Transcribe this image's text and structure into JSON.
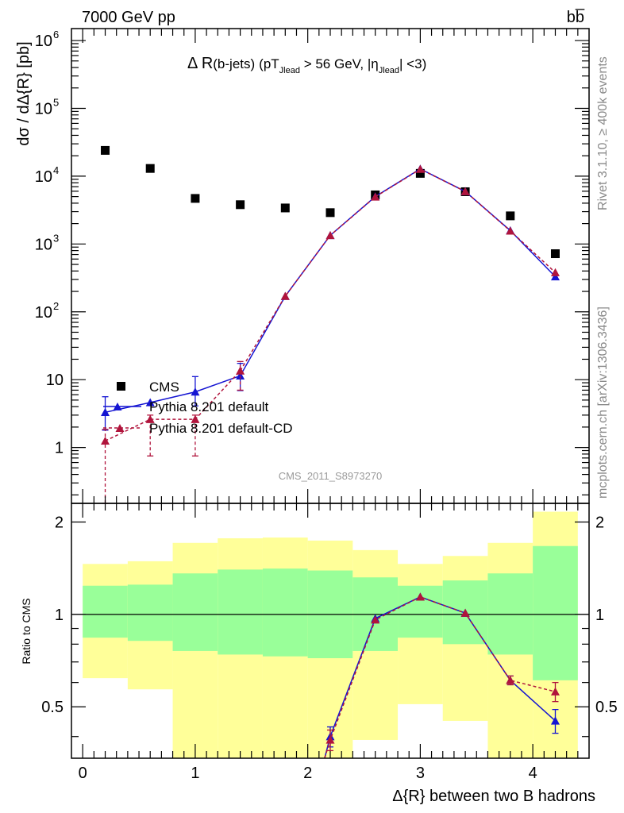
{
  "header": {
    "left": "7000 GeV pp",
    "right": "bb̅"
  },
  "plot_title": {
    "main": "Δ R",
    "bjets": "(b-jets)",
    "pt": "(pT",
    "pt_sub": "Jlead",
    "cut": " >  56 GeV, |η",
    "eta_sub": "Jlead",
    "end": "| <3)"
  },
  "side_labels": {
    "rivet": "Rivet 3.1.10, ≥ 400k events",
    "mcplots": "mcplots.cern.ch [arXiv:1306.3436]"
  },
  "watermark": "CMS_2011_S8973270",
  "chart_data": [
    {
      "type": "scatter",
      "scale": "log",
      "ylabel": "dσ / dΔ{R} [pb]",
      "ylim": [
        0.15,
        1500000
      ],
      "y_ticks": [
        {
          "v": 1,
          "label": "1"
        },
        {
          "v": 10,
          "label": "10"
        },
        {
          "v": 100,
          "label": "10",
          "exp": "2"
        },
        {
          "v": 1000,
          "label": "10",
          "exp": "3"
        },
        {
          "v": 10000,
          "label": "10",
          "exp": "4"
        },
        {
          "v": 100000,
          "label": "10",
          "exp": "5"
        },
        {
          "v": 1000000,
          "label": "10",
          "exp": "6"
        }
      ],
      "legend": [
        "CMS",
        "Pythia 8.201 default",
        "Pythia 8.201 default-CD"
      ],
      "legend_placement": "lower-left",
      "series": [
        {
          "name": "CMS",
          "color": "#000000",
          "marker": "square",
          "x": [
            0.2,
            0.6,
            1.0,
            1.4,
            1.8,
            2.2,
            2.6,
            3.0,
            3.4,
            3.8,
            4.2
          ],
          "y": [
            24000,
            13000,
            4700,
            3800,
            3400,
            2900,
            5300,
            11000,
            5900,
            2600,
            720
          ]
        },
        {
          "name": "Pythia 8.201 default",
          "color": "#1414d2",
          "marker": "triangle",
          "line": "solid",
          "x": [
            0.2,
            0.6,
            1.0,
            1.4,
            1.8,
            2.2,
            2.6,
            3.0,
            3.4,
            3.8,
            4.2
          ],
          "y": [
            3.3,
            4.6,
            6.6,
            11.4,
            170,
            1340,
            5000,
            12800,
            5950,
            1580,
            330
          ],
          "yerr_low": [
            1.5,
            0.5,
            2.5,
            4.5,
            10,
            30,
            60,
            100,
            60,
            40,
            20
          ],
          "yerr_high": [
            2.3,
            0.5,
            4.5,
            6,
            10,
            30,
            60,
            100,
            60,
            40,
            20
          ]
        },
        {
          "name": "Pythia 8.201 default-CD",
          "color": "#b0143c",
          "marker": "triangle",
          "line": "dashed",
          "x": [
            0.2,
            0.6,
            1.0,
            1.4,
            1.8,
            2.2,
            2.6,
            3.0,
            3.4,
            3.8,
            4.2
          ],
          "y": [
            1.25,
            2.6,
            2.6,
            13.5,
            170,
            1340,
            4950,
            12700,
            5950,
            1560,
            380
          ],
          "yerr_low": [
            1.2,
            1.85,
            1.85,
            6.5,
            10,
            30,
            60,
            100,
            60,
            40,
            20
          ],
          "yerr_high": [
            0.6,
            0.4,
            0.4,
            5,
            10,
            30,
            60,
            100,
            60,
            40,
            20
          ]
        }
      ]
    },
    {
      "type": "line",
      "scale": "log",
      "ylabel": "Ratio to CMS",
      "xlabel": "Δ{R} between two B hadrons",
      "xlim": [
        -0.1,
        4.5
      ],
      "ylim": [
        0.34,
        2.3
      ],
      "x_ticks": [
        0,
        1,
        2,
        3,
        4
      ],
      "y_ticks": [
        0.5,
        1,
        2
      ],
      "reference_line": 1.0,
      "bands": {
        "edges": [
          0.0,
          0.4,
          0.8,
          1.2,
          1.6,
          2.0,
          2.4,
          2.8,
          3.2,
          3.6,
          4.0,
          4.4
        ],
        "inner_color": "#99ff99",
        "outer_color": "#ffff99",
        "inner_low": [
          0.84,
          0.82,
          0.76,
          0.74,
          0.73,
          0.72,
          0.76,
          0.84,
          0.8,
          0.74,
          0.61
        ],
        "inner_high": [
          1.24,
          1.25,
          1.36,
          1.4,
          1.41,
          1.39,
          1.32,
          1.24,
          1.29,
          1.36,
          1.67
        ],
        "outer_low": [
          0.62,
          0.57,
          0.34,
          0.34,
          0.34,
          0.34,
          0.39,
          0.51,
          0.45,
          0.34,
          0.34
        ],
        "outer_high": [
          1.46,
          1.49,
          1.71,
          1.77,
          1.78,
          1.74,
          1.62,
          1.46,
          1.55,
          1.71,
          2.16
        ]
      },
      "series": [
        {
          "name": "Pythia 8.201 default",
          "color": "#1414d2",
          "marker": "triangle",
          "line": "solid",
          "x": [
            2.2,
            2.6,
            3.0,
            3.4,
            3.8,
            4.2
          ],
          "y": [
            0.4,
            0.97,
            1.14,
            1.01,
            0.61,
            0.45
          ],
          "yerr": [
            0.03,
            0.01,
            0.01,
            0.01,
            0.02,
            0.04
          ]
        },
        {
          "name": "Pythia 8.201 default-CD",
          "color": "#b0143c",
          "marker": "triangle",
          "line": "dashed",
          "x": [
            2.2,
            2.6,
            3.0,
            3.4,
            3.8,
            4.2
          ],
          "y": [
            0.39,
            0.96,
            1.14,
            1.01,
            0.61,
            0.56
          ],
          "yerr": [
            0.03,
            0.01,
            0.01,
            0.01,
            0.02,
            0.04
          ]
        }
      ]
    }
  ]
}
